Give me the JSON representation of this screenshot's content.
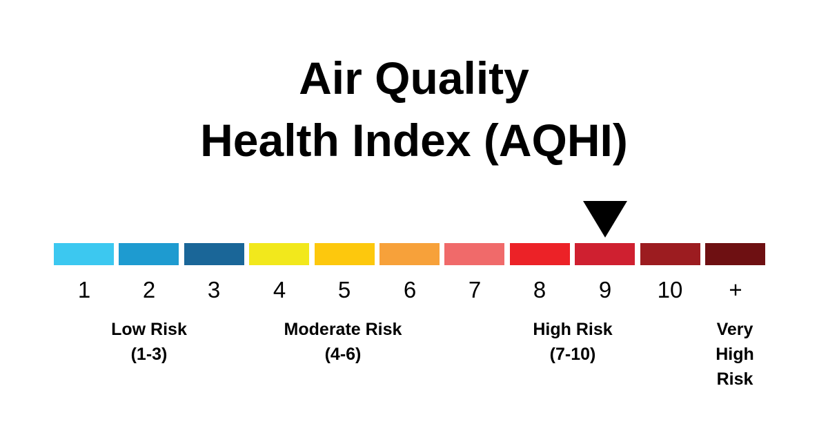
{
  "title": {
    "line1": "Air Quality",
    "line2": "Health Index (AQHI)"
  },
  "indicator": {
    "icon": "down-triangle-icon",
    "current_level": "9"
  },
  "scale": [
    {
      "label": "1",
      "color": "#3cc8f0"
    },
    {
      "label": "2",
      "color": "#1e9bd0"
    },
    {
      "label": "3",
      "color": "#1a6698"
    },
    {
      "label": "4",
      "color": "#f2e81c"
    },
    {
      "label": "5",
      "color": "#fdc80d"
    },
    {
      "label": "6",
      "color": "#f7a13a"
    },
    {
      "label": "7",
      "color": "#f06a6a"
    },
    {
      "label": "8",
      "color": "#ec2227"
    },
    {
      "label": "9",
      "color": "#cf2030"
    },
    {
      "label": "10",
      "color": "#9c1c20"
    },
    {
      "label": "+",
      "color": "#6e1012"
    }
  ],
  "categories": [
    {
      "name": "Low Risk",
      "range": "(1-3)"
    },
    {
      "name": "Moderate Risk",
      "range": "(4-6)"
    },
    {
      "name": "High Risk",
      "range": "(7-10)"
    },
    {
      "name_lines": [
        "Very",
        "High",
        "Risk"
      ]
    }
  ]
}
